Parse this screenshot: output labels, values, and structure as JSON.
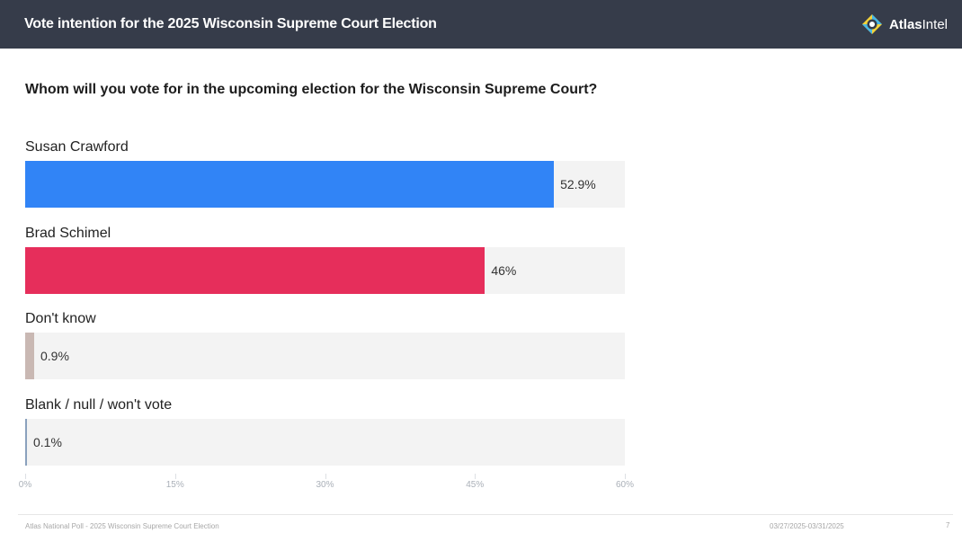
{
  "header": {
    "title": "Vote intention for the 2025 Wisconsin Supreme Court Election",
    "brand_strong": "Atlas",
    "brand_rest": "Intel",
    "brand_logo_icon": "atlasintel-logo-icon"
  },
  "question": "Whom will you vote for in the upcoming election for the Wisconsin Supreme Court?",
  "chart_data": {
    "type": "bar",
    "orientation": "horizontal",
    "categories": [
      "Susan Crawford",
      "Brad Schimel",
      "Don't know",
      "Blank / null / won't vote"
    ],
    "values": [
      52.9,
      46,
      0.9,
      0.1
    ],
    "value_labels": [
      "52.9%",
      "46%",
      "0.9%",
      "0.1%"
    ],
    "colors": [
      "#3184f6",
      "#e62e5b",
      "#c9b8b3",
      "#8aa1bd"
    ],
    "xlim": [
      0,
      60
    ],
    "xticks": [
      "0%",
      "15%",
      "30%",
      "45%",
      "60%"
    ],
    "xtick_values": [
      0,
      15,
      30,
      45,
      60
    ],
    "track_color": "#f3f3f3",
    "grid": false
  },
  "footer": {
    "left": "Atlas National Poll - 2025 Wisconsin Supreme Court Election",
    "date": "03/27/2025-03/31/2025",
    "page": "7"
  }
}
